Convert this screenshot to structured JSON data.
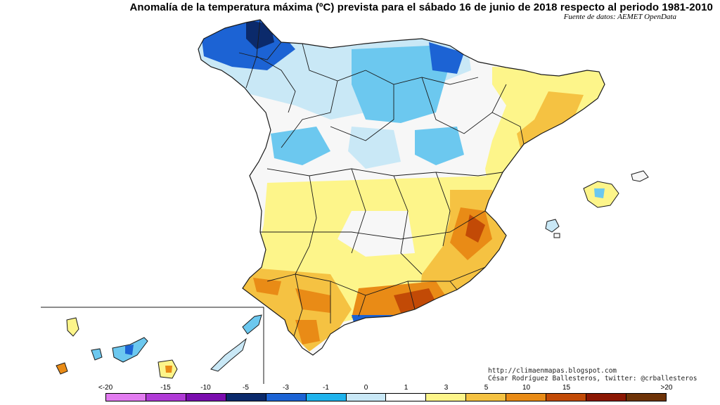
{
  "title": "Anomalía de la temperatura máxima (ºC) prevista para el sábado 16 de junio de 2018 respecto al periodo 1981-2010",
  "source": "Fuente de datos: AEMET OpenData",
  "credits": {
    "blog": "http://climaenmapas.blogspot.com",
    "author": "César Rodríguez Ballesteros, twitter: @crballesteros"
  },
  "legend": {
    "labels": [
      "<-20",
      "-15",
      "-10",
      "-5",
      "-3",
      "-1",
      "0",
      "1",
      "3",
      "5",
      "10",
      "15",
      ">20"
    ],
    "colors": [
      "#e27bf0",
      "#b03ad6",
      "#7a0dae",
      "#0b2a6b",
      "#1c63d4",
      "#1fb3ec",
      "#c9e8f6",
      "#ffffff",
      "#fdf58a",
      "#f5c242",
      "#e98b16",
      "#c24a06",
      "#8b1703",
      "#6e3307"
    ]
  },
  "map": {
    "regions": [
      "peninsula",
      "baleares",
      "canarias"
    ],
    "colors": {
      "land_neutral": "#f7f7f7",
      "border": "#1a1a1a",
      "blue_strong": "#1c63d4",
      "blue_dark": "#0b2a6b",
      "blue_light": "#6cc8ef",
      "blue_pale": "#c9e8f6",
      "yellow": "#fdf58a",
      "orange": "#f5c242",
      "dark_orange": "#e98b16",
      "red": "#c24a06"
    }
  }
}
